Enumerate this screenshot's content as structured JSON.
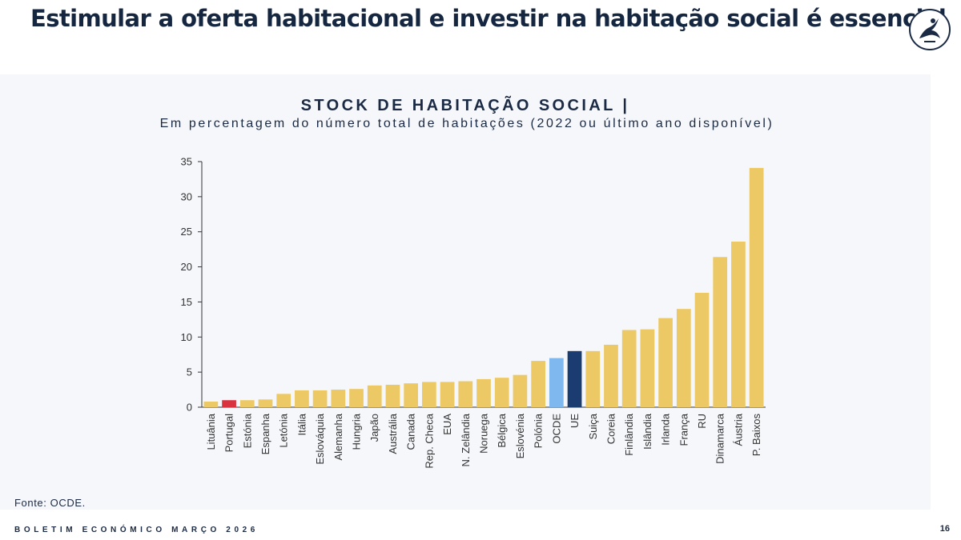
{
  "slide": {
    "headline": "Estimular a oferta habitacional e investir na habitação social é essencial",
    "source": "Fonte: OCDE.",
    "footer": "BOLETIM ECONÓMICO MARÇO 2026",
    "page_number": "16"
  },
  "colors": {
    "default_bar": "#ecc965",
    "portugal": "#d8333f",
    "ocde": "#7fb8ee",
    "ue": "#1b3c70",
    "axis": "#333333"
  },
  "chart_data": {
    "type": "bar",
    "title": "STOCK DE HABITAÇÃO SOCIAL |",
    "subtitle": "Em percentagem do número total de habitações (2022 ou último ano disponível)",
    "xlabel": "",
    "ylabel": "",
    "ylim": [
      0,
      35
    ],
    "yticks": [
      0,
      5,
      10,
      15,
      20,
      25,
      30,
      35
    ],
    "categories": [
      "Lituânia",
      "Portugal",
      "Estónia",
      "Espanha",
      "Letónia",
      "Itália",
      "Eslováquia",
      "Alemanha",
      "Hungria",
      "Japão",
      "Austrália",
      "Canada",
      "Rep. Checa",
      "EUA",
      "N. Zelândia",
      "Noruega",
      "Bélgica",
      "Eslovénia",
      "Polónia",
      "OCDE",
      "UE",
      "Suiça",
      "Coreia",
      "Finlândia",
      "Islândia",
      "Irlanda",
      "França",
      "RU",
      "Dinamarca",
      "Áustria",
      "P. Baixos"
    ],
    "values": [
      0.8,
      1.0,
      1.0,
      1.1,
      1.9,
      2.4,
      2.4,
      2.5,
      2.6,
      3.1,
      3.2,
      3.4,
      3.6,
      3.6,
      3.7,
      4.0,
      4.2,
      4.6,
      6.6,
      7.0,
      8.0,
      8.0,
      8.9,
      11.0,
      11.1,
      12.7,
      14.0,
      16.3,
      21.4,
      23.6,
      34.1
    ],
    "highlights": {
      "Portugal": "portugal",
      "OCDE": "ocde",
      "UE": "ue"
    },
    "grid": false,
    "legend": "none"
  }
}
